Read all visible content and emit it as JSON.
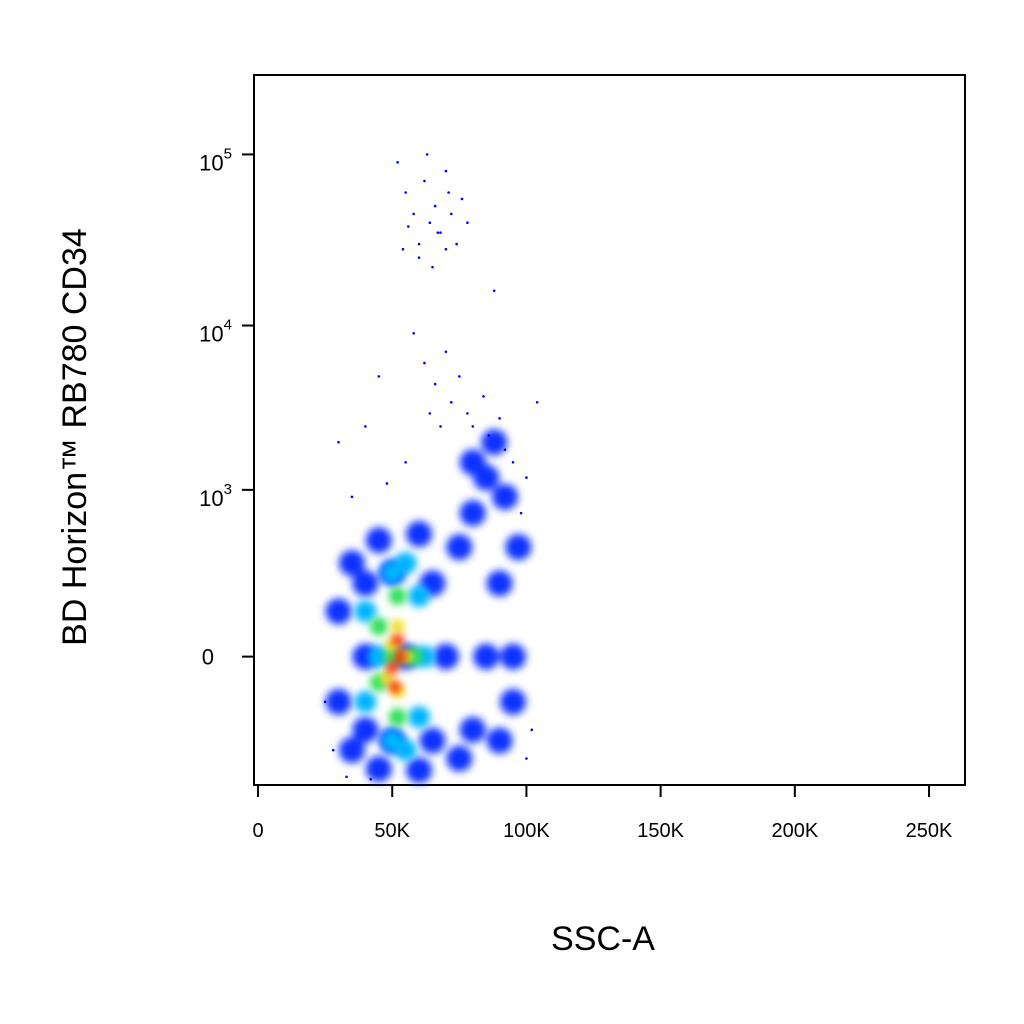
{
  "chart_data": {
    "type": "scatter",
    "xlabel": "SSC-A",
    "ylabel": "BD Horizon™ RB780 CD34",
    "yscale": "symlog",
    "xlim": [
      -1500,
      263400
    ],
    "ylim": [
      -550,
      290000
    ],
    "xticks": [
      0,
      {
        "value": 50000,
        "label": "50K"
      },
      {
        "value": 100000,
        "label": "100K"
      },
      {
        "value": 150000,
        "label": "150K"
      },
      {
        "value": 200000,
        "label": "200K"
      },
      {
        "value": 250000,
        "label": "250K"
      }
    ],
    "yticks": [
      0,
      {
        "value": 1000,
        "label": "10",
        "exponent": "3"
      },
      {
        "value": 10000,
        "label": "10",
        "exponent": "4"
      },
      {
        "value": 100000,
        "label": "10",
        "exponent": "5"
      }
    ],
    "series": [
      {
        "color": "#0a30ff",
        "x": [
          30000,
          30000,
          35000,
          35000,
          45000,
          45000,
          60000,
          60000,
          75000,
          75000,
          90000,
          90000,
          95000,
          95000,
          40000,
          55000,
          70000,
          85000,
          65000,
          80000,
          85000,
          88000,
          80000,
          92000,
          50000,
          65000,
          80000,
          50000,
          40000,
          40000,
          97000
        ],
        "y": [
          -100,
          100,
          -300,
          300,
          -420,
          450,
          -430,
          500,
          -350,
          400,
          -250,
          200,
          0,
          -100,
          0,
          0,
          0,
          0,
          200,
          700,
          1200,
          2000,
          1500,
          900,
          -250,
          -250,
          -200,
          250,
          -200,
          200,
          400
        ]
      },
      {
        "color": "#0000ff",
        "x": [
          52000,
          55000,
          58000,
          60000,
          62000,
          64000,
          66000,
          68000,
          70000,
          72000,
          74000,
          76000,
          60000,
          65000,
          70000,
          56000,
          78000,
          63000,
          67000,
          71000,
          54000,
          88000,
          58000,
          62000,
          66000,
          70000,
          72000,
          75000,
          78000,
          80000,
          84000,
          86000,
          90000,
          92000,
          95000,
          100000,
          68000,
          64000,
          45000,
          40000,
          30000,
          104000,
          98000,
          55000,
          48000,
          35000,
          102000,
          25000,
          28000,
          33000,
          100000,
          42000
        ],
        "y": [
          90000,
          60000,
          45000,
          30000,
          70000,
          40000,
          50000,
          35000,
          80000,
          45000,
          30000,
          55000,
          25000,
          22000,
          28000,
          38000,
          40000,
          100000,
          35000,
          60000,
          28000,
          16000,
          9000,
          6000,
          4500,
          7000,
          3500,
          5000,
          3000,
          2500,
          3800,
          2200,
          2800,
          1800,
          1500,
          1200,
          2500,
          3000,
          5000,
          2500,
          2000,
          3500,
          700,
          1500,
          1100,
          900,
          -200,
          -100,
          -300,
          -480,
          -350,
          -500
        ]
      },
      {
        "color": "#00b4ff",
        "x": [
          40000,
          40000,
          50000,
          50000,
          60000,
          60000,
          45000,
          62000,
          55000,
          55000
        ],
        "y": [
          -100,
          100,
          -250,
          250,
          -150,
          150,
          0,
          0,
          -300,
          300
        ]
      },
      {
        "color": "#2ee05a",
        "x": [
          45000,
          45000,
          52000,
          52000,
          58000,
          50000
        ],
        "y": [
          -50,
          60,
          -150,
          150,
          0,
          0
        ]
      },
      {
        "color": "#f0e020",
        "x": [
          48000,
          52000,
          52000,
          55000,
          50000
        ],
        "y": [
          -40,
          60,
          -70,
          0,
          20
        ]
      },
      {
        "color": "#ff2a00",
        "x": [
          50000,
          52000,
          51000,
          53000
        ],
        "y": [
          -20,
          30,
          -60,
          0
        ]
      }
    ]
  }
}
